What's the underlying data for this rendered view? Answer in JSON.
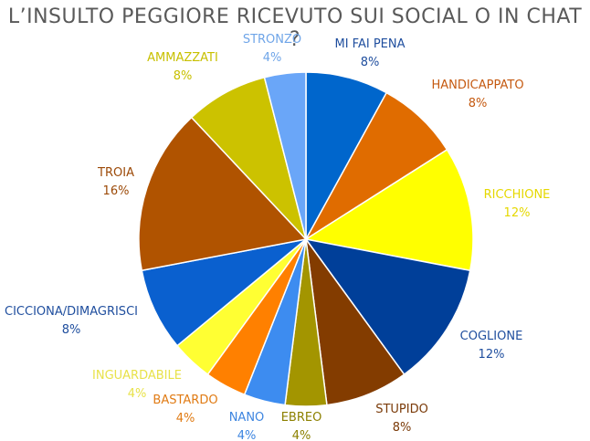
{
  "chart_data": {
    "type": "pie",
    "title": "L’INSULTO PEGGIORE RICEVUTO SUI SOCIAL O IN CHAT ?",
    "slices": [
      {
        "label": "MI FAI PENA",
        "value": 8,
        "value_label": "8%",
        "color": "#0066CC",
        "label_color": "#1F4E9E"
      },
      {
        "label": "HANDICAPPATO",
        "value": 8,
        "value_label": "8%",
        "color": "#E06C00",
        "label_color": "#C55A11"
      },
      {
        "label": "RICCHIONE",
        "value": 12,
        "value_label": "12%",
        "color": "#FFFF00",
        "label_color": "#E5D800"
      },
      {
        "label": "COGLIONE",
        "value": 12,
        "value_label": "12%",
        "color": "#003F99",
        "label_color": "#1F4E9E"
      },
      {
        "label": "STUPIDO",
        "value": 8,
        "value_label": "8%",
        "color": "#833C00",
        "label_color": "#7A3A08"
      },
      {
        "label": "EBREO",
        "value": 4,
        "value_label": "4%",
        "color": "#A39500",
        "label_color": "#8C8000"
      },
      {
        "label": "NANO",
        "value": 4,
        "value_label": "4%",
        "color": "#3D8CF0",
        "label_color": "#3D85E0"
      },
      {
        "label": "BASTARDO",
        "value": 4,
        "value_label": "4%",
        "color": "#FF8000",
        "label_color": "#E07B14"
      },
      {
        "label": "INGUARDABILE",
        "value": 4,
        "value_label": "4%",
        "color": "#FFFF33",
        "label_color": "#E8E24A"
      },
      {
        "label": "CICCIONA/DIMAGRISCI",
        "value": 8,
        "value_label": "8%",
        "color": "#0A60CF",
        "label_color": "#1F4E9E"
      },
      {
        "label": "TROIA",
        "value": 16,
        "value_label": "16%",
        "color": "#B05300",
        "label_color": "#9C4A08"
      },
      {
        "label": "AMMAZZATI",
        "value": 8,
        "value_label": "8%",
        "color": "#CCC200",
        "label_color": "#C8C000"
      },
      {
        "label": "STRONZO",
        "value": 4,
        "value_label": "4%",
        "color": "#6AA6F8",
        "label_color": "#6FA5E8"
      }
    ]
  }
}
